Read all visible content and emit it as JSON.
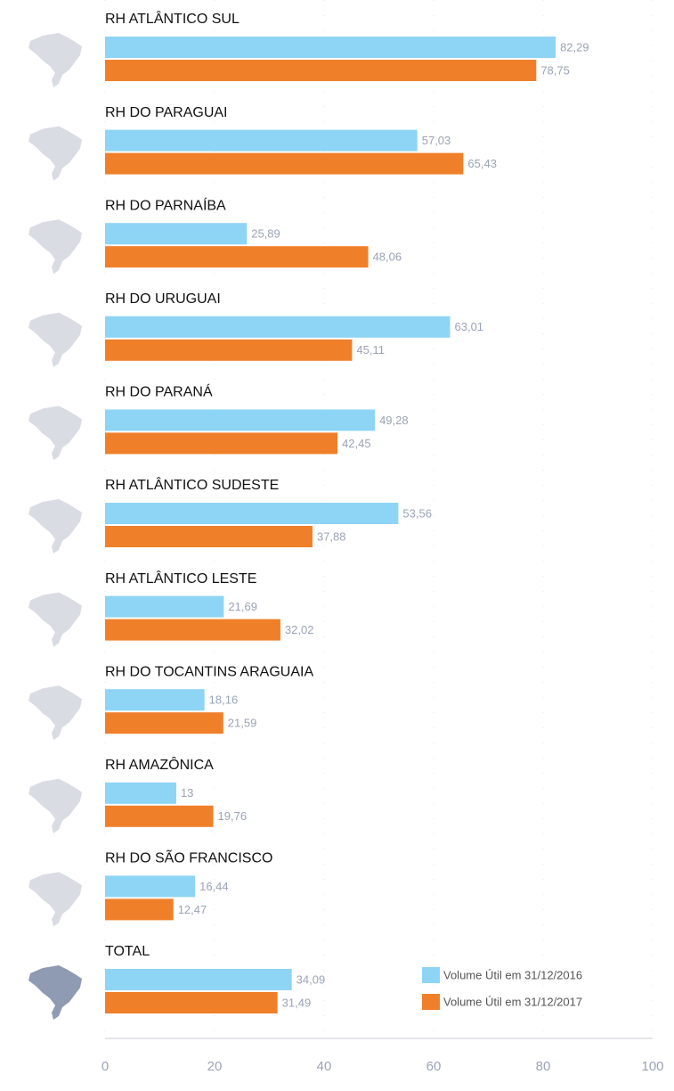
{
  "chart_data": {
    "type": "hbar",
    "categories": [
      "RH ATLÂNTICO SUL",
      "RH DO PARAGUAI",
      "RH DO PARNAÍBA",
      "RH DO URUGUAI",
      "RH DO PARANÁ",
      "RH ATLÂNTICO SUDESTE",
      "RH ATLÂNTICO LESTE",
      "RH DO TOCANTINS ARAGUAIA",
      "RH AMAZÔNICA",
      "RH DO SÃO FRANCISCO",
      "TOTAL"
    ],
    "series": [
      {
        "name": "Volume Útil em 31/12/2016",
        "color": "#8ed4f5",
        "values": [
          82.29,
          57.03,
          25.89,
          63.01,
          49.28,
          53.56,
          21.69,
          18.16,
          13,
          16.44,
          34.09
        ],
        "value_labels": [
          "82,29",
          "57,03",
          "25,89",
          "63,01",
          "49,28",
          "53,56",
          "21,69",
          "18,16",
          "13",
          "16,44",
          "34,09"
        ]
      },
      {
        "name": "Volume Útil em 31/12/2017",
        "color": "#f07f2a",
        "values": [
          78.75,
          65.43,
          48.06,
          45.11,
          42.45,
          37.88,
          32.02,
          21.59,
          19.76,
          12.47,
          31.49
        ],
        "value_labels": [
          "78,75",
          "65,43",
          "48,06",
          "45,11",
          "42,45",
          "37,88",
          "32,02",
          "21,59",
          "19,76",
          "12,47",
          "31,49"
        ]
      }
    ],
    "xlim": [
      0,
      100
    ],
    "xticks": [
      0,
      20,
      40,
      60,
      80,
      100
    ],
    "legend": "lower-right"
  }
}
